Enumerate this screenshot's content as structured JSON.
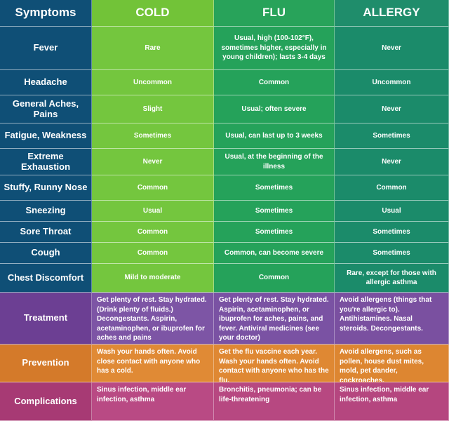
{
  "headers": {
    "symptoms": "Symptoms",
    "cold": "COLD",
    "flu": "FLU",
    "allergy": "ALLERGY"
  },
  "rows": [
    {
      "label": "Fever",
      "cold": "Rare",
      "flu": "Usual, high (100-102°F), sometimes higher, especially in young children); lasts 3-4 days",
      "allergy": "Never"
    },
    {
      "label": "Headache",
      "cold": "Uncommon",
      "flu": "Common",
      "allergy": "Uncommon"
    },
    {
      "label": "General Aches, Pains",
      "cold": "Slight",
      "flu": "Usual; often severe",
      "allergy": "Never"
    },
    {
      "label": "Fatigue, Weakness",
      "cold": "Sometimes",
      "flu": "Usual, can last up to 3 weeks",
      "allergy": "Sometimes"
    },
    {
      "label": "Extreme Exhaustion",
      "cold": "Never",
      "flu": "Usual, at the beginning of the illness",
      "allergy": "Never"
    },
    {
      "label": "Stuffy, Runny Nose",
      "cold": "Common",
      "flu": "Sometimes",
      "allergy": "Common"
    },
    {
      "label": "Sneezing",
      "cold": "Usual",
      "flu": "Sometimes",
      "allergy": "Usual"
    },
    {
      "label": "Sore Throat",
      "cold": "Common",
      "flu": "Sometimes",
      "allergy": "Sometimes"
    },
    {
      "label": "Cough",
      "cold": "Common",
      "flu": "Common, can become severe",
      "allergy": "Sometimes"
    },
    {
      "label": "Chest Discomfort",
      "cold": "Mild to moderate",
      "flu": "Common",
      "allergy": "Rare, except for those with allergic asthma"
    },
    {
      "label": "Treatment",
      "cold": "Get plenty of rest. Stay hydrated. (Drink plenty of fluids.) Decongestants. Aspirin, acetaminophen, or ibuprofen for aches and pains",
      "flu": "Get plenty of rest. Stay hydrated. Aspirin, acetaminophen, or ibuprofen for aches, pains, and fever. Antiviral medicines (see your doctor)",
      "allergy": "Avoid allergens (things that you're allergic to). Antihistamines. Nasal steroids. Decongestants."
    },
    {
      "label": "Prevention",
      "cold": "Wash your hands often. Avoid close contact with anyone who has a cold.",
      "flu": "Get the flu vaccine each year. Wash your hands often. Avoid contact with anyone who has the flu.",
      "allergy": "Avoid allergens, such as pollen, house dust mites, mold, pet dander, cockroaches."
    },
    {
      "label": "Complications",
      "cold": "Sinus infection, middle ear infection, asthma",
      "flu": "Bronchitis, pneumonia; can be life-threatening",
      "allergy": "Sinus infection, middle ear infection, asthma"
    }
  ]
}
